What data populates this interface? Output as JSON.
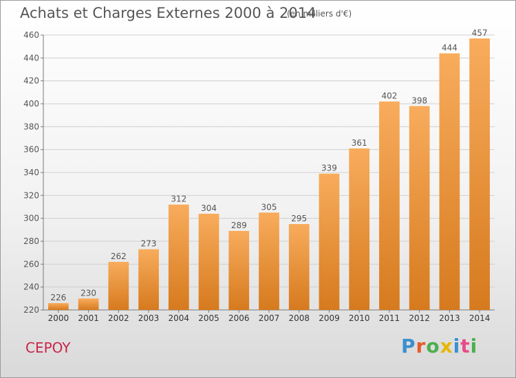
{
  "title": "Achats et Charges Externes 2000 à 2014",
  "subtitle": "(en milliers d'€)",
  "commune": "CEPOY",
  "logo": {
    "text": "Proxiti",
    "letter_colors": [
      "#3a8fd0",
      "#e85a2a",
      "#4caf50",
      "#e6b800",
      "#3a8fd0",
      "#e84a8a",
      "#4caf50"
    ]
  },
  "colors": {
    "bar_light": "#f8ac5c",
    "bar_dark": "#d67a1e",
    "grid": "#cfcfcf",
    "text": "#555555",
    "commune": "#c8254a"
  },
  "chart_data": {
    "type": "bar",
    "title": "Achats et Charges Externes 2000 à 2014",
    "subtitle": "(en milliers d'€)",
    "xlabel": "",
    "ylabel": "",
    "categories": [
      "2000",
      "2001",
      "2002",
      "2003",
      "2004",
      "2005",
      "2006",
      "2007",
      "2008",
      "2009",
      "2010",
      "2011",
      "2012",
      "2013",
      "2014"
    ],
    "values": [
      226,
      230,
      262,
      273,
      312,
      304,
      289,
      305,
      295,
      339,
      361,
      402,
      398,
      444,
      457
    ],
    "ylim": [
      220,
      460
    ],
    "yticks": [
      220,
      240,
      260,
      280,
      300,
      320,
      340,
      360,
      380,
      400,
      420,
      440,
      460
    ],
    "grid": true,
    "legend": "none"
  }
}
